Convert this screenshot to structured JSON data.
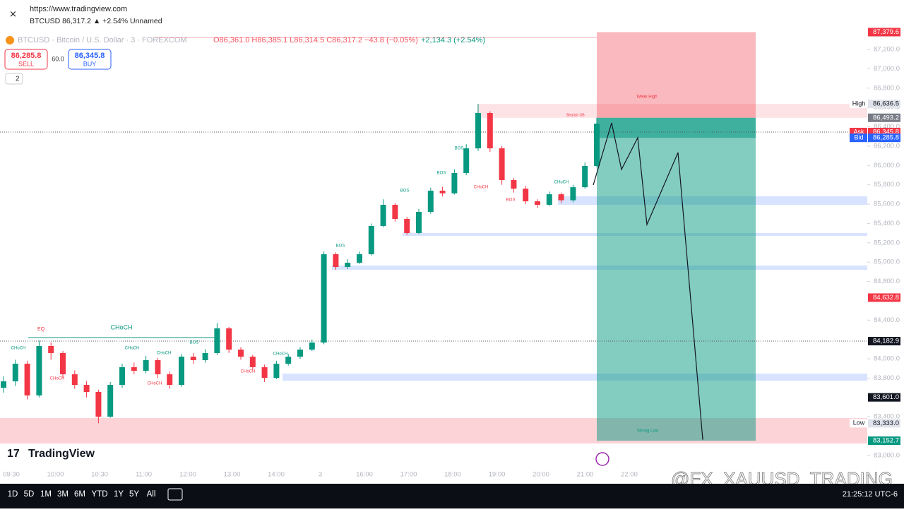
{
  "browser": {
    "url": "https://www.tradingview.com",
    "tab_info": "BTCUSD 86,317.2 ▲ +2.54% Unnamed"
  },
  "legend": {
    "symbol": "BTCUSD · Bitcoin / U.S. Dollar · 3 · FOREXCOM",
    "ohlc": "O86,361.0 H86,385.1 L86,314.5 C86,317.2 −43.8 (−0.05%)",
    "change": "+2,134.3 (+2.54%)"
  },
  "trade": {
    "sell_price": "86,285.8",
    "sell": "SELL",
    "spread": "60.0",
    "buy_price": "86,345.8",
    "buy": "BUY"
  },
  "indicator_toggle": "2",
  "brand": "TradingView",
  "toolbar": {
    "ranges": [
      "1D",
      "5D",
      "1M",
      "3M",
      "6M",
      "YTD",
      "1Y",
      "5Y",
      "All"
    ],
    "clock": "21:25:12 UTC-6"
  },
  "watermark": "@FX_XAUUSD_TRADING",
  "chart_data": {
    "type": "candlestick",
    "up_color": "#089981",
    "down_color": "#f23645",
    "ylim": [
      82890,
      87383
    ],
    "yticks": [
      {
        "value": 87200,
        "label": "87,200.0"
      },
      {
        "value": 87000,
        "label": "87,000.0"
      },
      {
        "value": 86800,
        "label": "86,800.0"
      },
      {
        "value": 86600,
        "label": "86,600.0"
      },
      {
        "value": 86400,
        "label": "86,400.0"
      },
      {
        "value": 86200,
        "label": "86,200.0"
      },
      {
        "value": 86000,
        "label": "86,000.0"
      },
      {
        "value": 85800,
        "label": "85,800.0"
      },
      {
        "value": 85600,
        "label": "85,600.0"
      },
      {
        "value": 85400,
        "label": "85,400.0"
      },
      {
        "value": 85200,
        "label": "85,200.0"
      },
      {
        "value": 85000,
        "label": "85,000.0"
      },
      {
        "value": 84800,
        "label": "84,800.0"
      },
      {
        "value": 84400,
        "label": "84,400.0"
      },
      {
        "value": 84000,
        "label": "84,000.0"
      },
      {
        "value": 83800,
        "label": "83,800.0"
      },
      {
        "value": 83400,
        "label": "83,400.0"
      },
      {
        "value": 83000,
        "label": "83,000.0"
      }
    ],
    "time_labels": [
      "09:30",
      "10:00",
      "10:30",
      "11:00",
      "12:00",
      "13:00",
      "14:00",
      "3",
      "16:00",
      "17:00",
      "18:00",
      "19:00",
      "20:00",
      "21:00",
      "22:00"
    ],
    "open": [
      83700,
      83767,
      83949,
      83621,
      84132,
      84059,
      83840,
      83730,
      83657,
      83401,
      83730,
      83913,
      83876,
      83986,
      83840,
      83730,
      84022,
      83986,
      84059,
      84315,
      84095,
      84022,
      83913,
      83803,
      83949,
      84022,
      84095,
      84168,
      85082,
      84950,
      84994,
      85082,
      85374,
      85593,
      85447,
      85301,
      85520,
      85739,
      85712,
      85922,
      86177,
      86543,
      86177,
      85849,
      85760,
      85629,
      85593,
      85702,
      85640,
      85775,
      85995
    ],
    "high": [
      83820,
      83990,
      83980,
      84190,
      84170,
      84080,
      83880,
      83770,
      83680,
      83760,
      83950,
      83960,
      84030,
      84010,
      83870,
      84050,
      84060,
      84100,
      84370,
      84330,
      84120,
      84040,
      83940,
      83980,
      84050,
      84120,
      84200,
      85110,
      85100,
      85030,
      85110,
      85400,
      85650,
      85610,
      85470,
      85550,
      85770,
      85780,
      85960,
      86220,
      86636,
      86560,
      86200,
      85870,
      85790,
      85650,
      85730,
      85720,
      85800,
      86030,
      86493
    ],
    "low": [
      83650,
      83720,
      83580,
      83600,
      83990,
      83800,
      83690,
      83600,
      83333,
      83390,
      83700,
      83840,
      83850,
      83800,
      83690,
      83710,
      83950,
      83960,
      84040,
      84060,
      83990,
      83880,
      83760,
      83790,
      83930,
      84000,
      84080,
      84150,
      84920,
      84930,
      84980,
      85070,
      85360,
      85420,
      85280,
      85290,
      85500,
      85680,
      85700,
      85900,
      86150,
      86140,
      85800,
      85720,
      85600,
      85560,
      85580,
      85610,
      85620,
      85760,
      85980
    ],
    "close": [
      83767,
      83949,
      83621,
      84132,
      84059,
      83840,
      83730,
      83657,
      83401,
      83730,
      83913,
      83876,
      83986,
      83840,
      83730,
      84022,
      83986,
      84059,
      84315,
      84095,
      84022,
      83913,
      83803,
      83949,
      84022,
      84095,
      84168,
      85082,
      84950,
      84994,
      85082,
      85374,
      85593,
      85447,
      85301,
      85520,
      85739,
      85712,
      85922,
      86177,
      86543,
      86177,
      85849,
      85760,
      85629,
      85593,
      85702,
      85640,
      85775,
      85995,
      86433
    ],
    "price_labels": [
      {
        "value": 87379.6,
        "label": "87,379.6",
        "color": "#f23645"
      },
      {
        "value": 86636.5,
        "label": "86,636.5",
        "tag": "High",
        "color": "#e0e3eb"
      },
      {
        "value": 86493.2,
        "label": "86,493.2",
        "color": "#787b86"
      },
      {
        "value": 86345.8,
        "label": "86,345.8",
        "tag": "Ask",
        "color": "#f23645"
      },
      {
        "value": 86285.8,
        "label": "86,285.8",
        "tag": "Bid",
        "color": "#2962ff"
      },
      {
        "value": 84632.8,
        "label": "84,632.8",
        "color": "#f23645"
      },
      {
        "value": 84182.9,
        "label": "84,182.9",
        "color": "#131722"
      },
      {
        "value": 83601.0,
        "label": "83,601.0",
        "color": "#131722"
      },
      {
        "value": 83333.0,
        "label": "83,333.0",
        "tag": "Low",
        "color": "#e0e3eb"
      },
      {
        "value": 83152.7,
        "label": "83,152.7",
        "color": "#089981"
      }
    ],
    "zones": [
      {
        "top": 86636,
        "bottom": 86493,
        "color": "rgba(242,54,69,0.14)"
      },
      {
        "top": 85681,
        "bottom": 85593,
        "color": "rgba(41,98,255,0.18)"
      },
      {
        "top": 85301,
        "bottom": 85272,
        "color": "rgba(41,98,255,0.18)"
      },
      {
        "top": 84965,
        "bottom": 84921,
        "color": "rgba(41,98,255,0.18)"
      },
      {
        "top": 83847,
        "bottom": 83774,
        "color": "rgba(41,98,255,0.18)"
      },
      {
        "top": 83387,
        "bottom": 83124,
        "color": "rgba(242,54,69,0.22)"
      }
    ],
    "annotations": [
      {
        "text": "CHoCH",
        "color": "#089981"
      },
      {
        "text": "EQ",
        "color": "#f23645"
      },
      {
        "text": "Weak High",
        "color": "#f23645"
      },
      {
        "text": "Strong Low",
        "color": "#089981"
      },
      {
        "text": "BOS",
        "color": "#089981"
      },
      {
        "text": "BOS",
        "color": "#089981"
      },
      {
        "text": "BOS",
        "color": "#089981"
      },
      {
        "text": "BOS",
        "color": "#089981"
      },
      {
        "text": "BOS",
        "color": "#089981"
      },
      {
        "text": "CHoCH",
        "color": "#089981"
      },
      {
        "text": "CHoCH",
        "color": "#f23645"
      },
      {
        "text": "CHoCH",
        "color": "#089981"
      },
      {
        "text": "CHoCH",
        "color": "#089981"
      },
      {
        "text": "CHoCH",
        "color": "#089981"
      },
      {
        "text": "CHoCH",
        "color": "#089981"
      },
      {
        "text": "CHoCH",
        "color": "#f23645"
      },
      {
        "text": "CHoCH",
        "color": "#f23645"
      },
      {
        "text": "CHoCH",
        "color": "#f23645"
      },
      {
        "text": "BOS",
        "color": "#f23645"
      },
      {
        "text": "Bearish OB",
        "color": "#f23645"
      }
    ]
  }
}
